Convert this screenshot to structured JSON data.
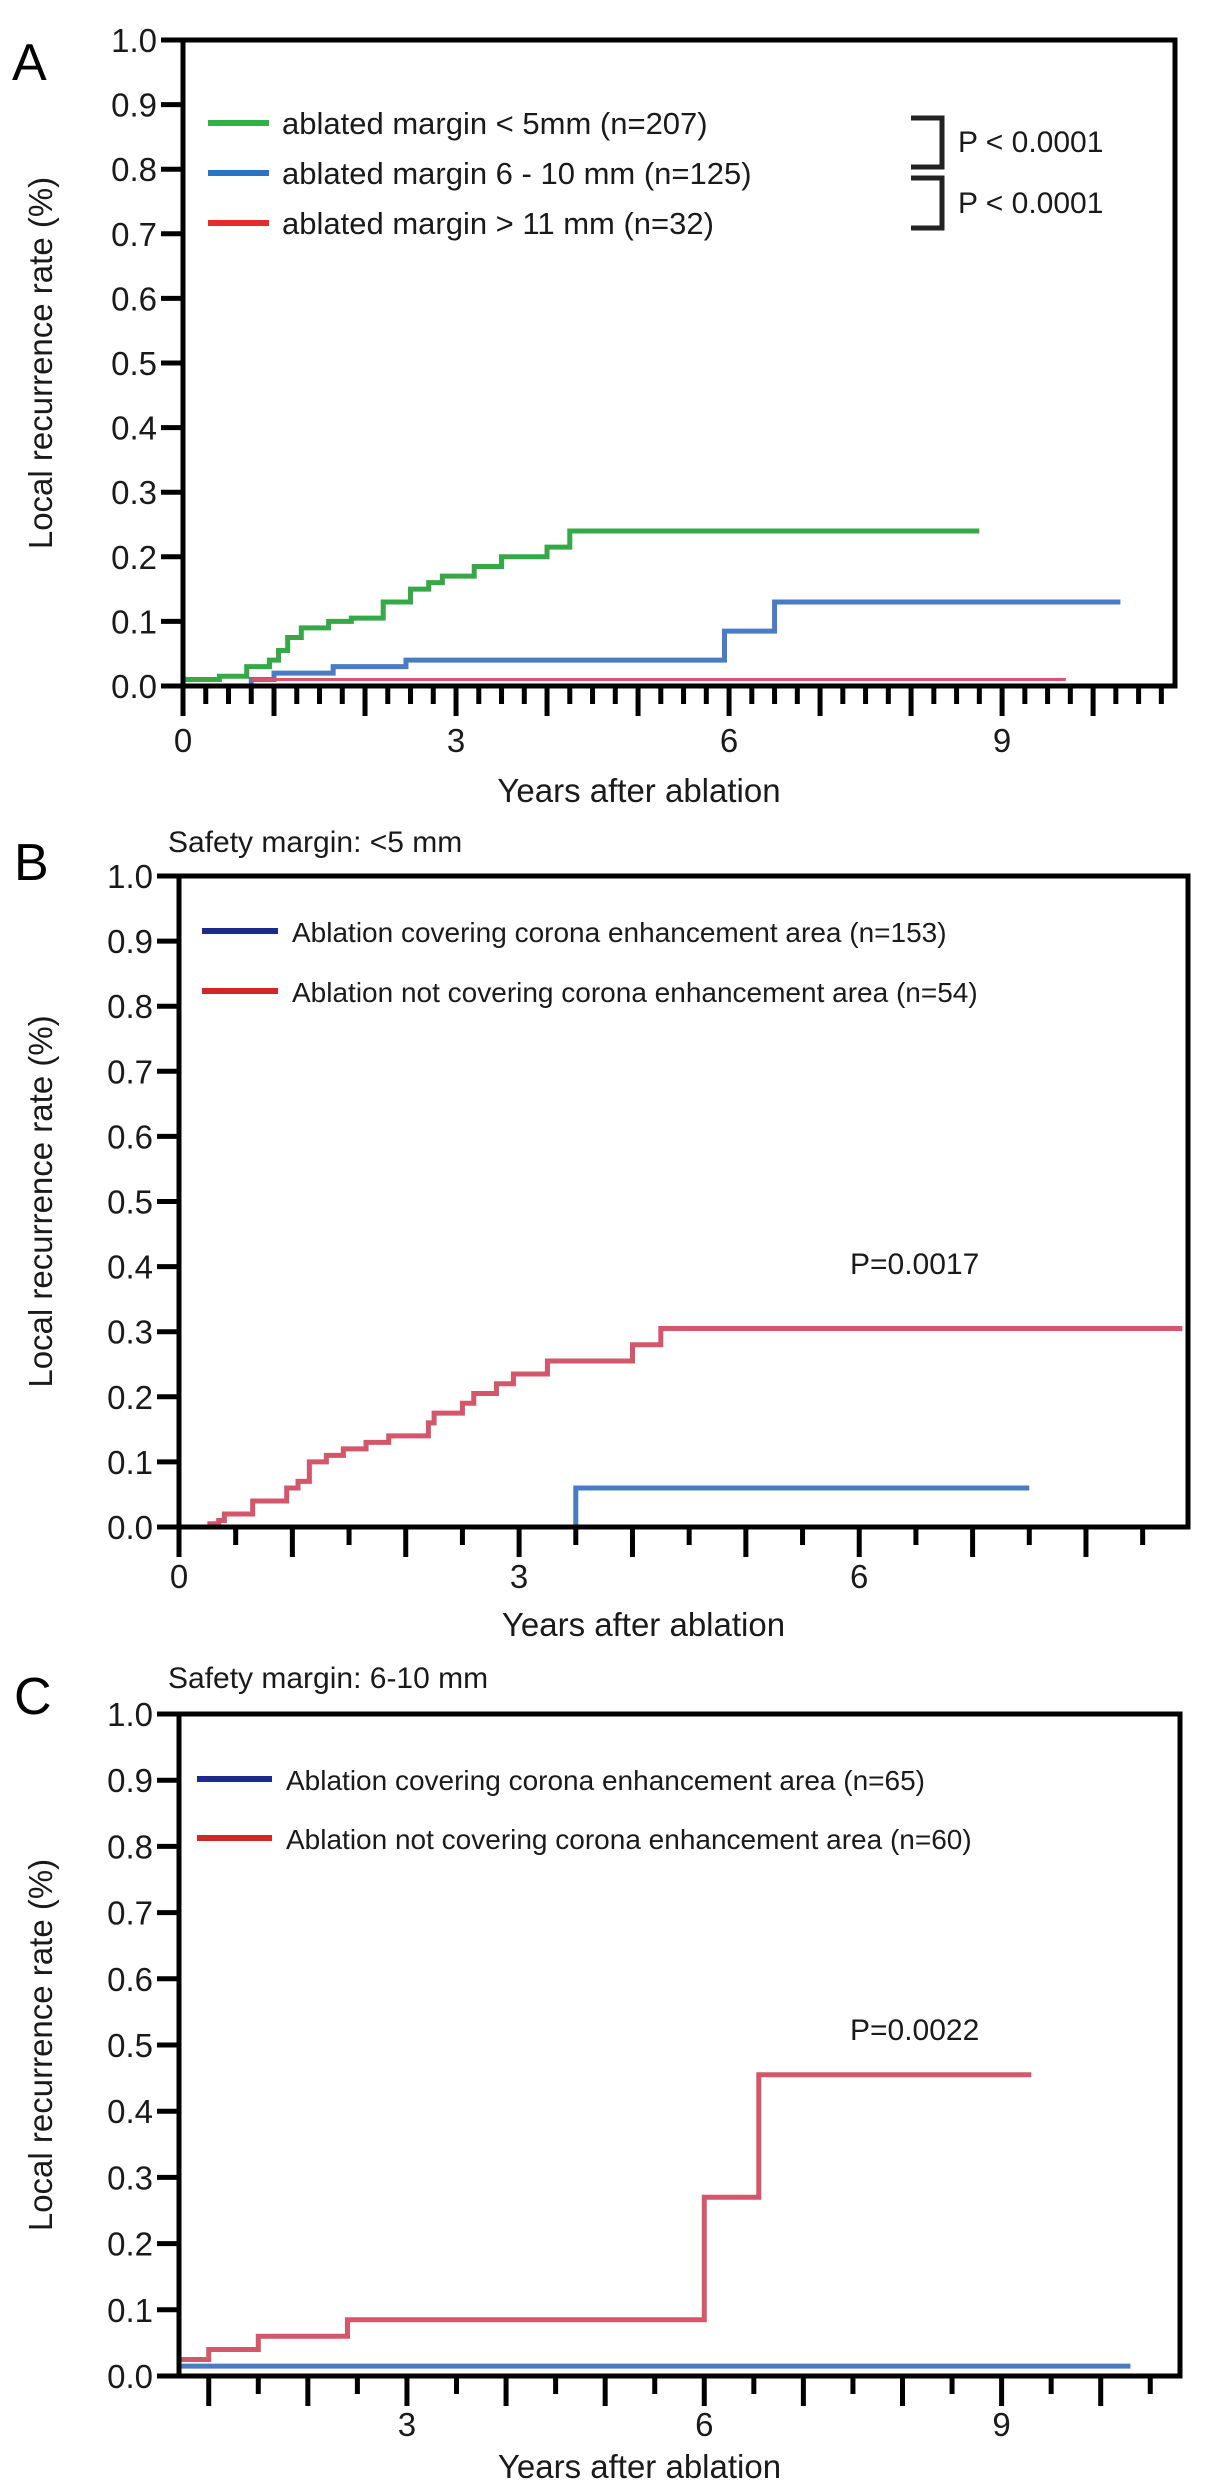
{
  "chart_data": [
    {
      "type": "line",
      "panel_label": "A",
      "title": "",
      "xlabel": "Years after ablation",
      "ylabel": "Local recurrence rate (%)",
      "xlim": [
        0,
        10.9
      ],
      "ylim": [
        0,
        1.0
      ],
      "xticks": [
        "0",
        "3",
        "6",
        "9"
      ],
      "xtick_values": [
        0,
        3,
        6,
        9
      ],
      "yticks": [
        "0.0",
        "0.1",
        "0.2",
        "0.3",
        "0.4",
        "0.5",
        "0.6",
        "0.7",
        "0.8",
        "0.9",
        "1.0"
      ],
      "grid": false,
      "legend_position": "top-left",
      "series": [
        {
          "name": "ablated margin < 5mm (n=207)",
          "color": "#36a847",
          "legend_color": "#2db34a",
          "end": 8.75,
          "steps": [
            [
              0,
              0.01
            ],
            [
              0.4,
              0.015
            ],
            [
              0.7,
              0.03
            ],
            [
              0.95,
              0.04
            ],
            [
              1.05,
              0.055
            ],
            [
              1.15,
              0.075
            ],
            [
              1.3,
              0.09
            ],
            [
              1.6,
              0.1
            ],
            [
              1.85,
              0.105
            ],
            [
              2.2,
              0.13
            ],
            [
              2.5,
              0.15
            ],
            [
              2.7,
              0.16
            ],
            [
              2.85,
              0.17
            ],
            [
              3.2,
              0.185
            ],
            [
              3.5,
              0.2
            ],
            [
              4.0,
              0.215
            ],
            [
              4.25,
              0.24
            ]
          ]
        },
        {
          "name": "ablated margin 6 - 10 mm (n=125)",
          "color": "#4a7cc4",
          "legend_color": "#2a73c0",
          "end": 10.3,
          "steps": [
            [
              0,
              0.0
            ],
            [
              0.75,
              0.01
            ],
            [
              1.0,
              0.02
            ],
            [
              1.65,
              0.03
            ],
            [
              2.45,
              0.04
            ],
            [
              5.95,
              0.085
            ],
            [
              6.5,
              0.13
            ]
          ]
        },
        {
          "name": "ablated margin > 11 mm (n=32)",
          "color": "#d9546a",
          "legend_color": "#e52b2b",
          "end": 9.7,
          "steps": [
            [
              0.75,
              0.01
            ]
          ]
        }
      ],
      "annotations": [
        "P < 0.0001",
        "P < 0.0001"
      ]
    },
    {
      "type": "line",
      "panel_label": "B",
      "title": "Safety margin: <5 mm",
      "xlabel": "Years after ablation",
      "ylabel": "Local recurrence rate (%)",
      "xlim": [
        0,
        8.9
      ],
      "ylim": [
        0,
        1.0
      ],
      "xticks": [
        "0",
        "3",
        "6"
      ],
      "xtick_values": [
        0,
        3,
        6
      ],
      "yticks": [
        "0.0",
        "0.1",
        "0.2",
        "0.3",
        "0.4",
        "0.5",
        "0.6",
        "0.7",
        "0.8",
        "0.9",
        "1.0"
      ],
      "grid": false,
      "legend_position": "top-left",
      "series": [
        {
          "name": "Ablation covering corona enhancement area (n=153)",
          "color": "#4a7cc4",
          "legend_color": "#1d2a8c",
          "end": 7.5,
          "steps": [
            [
              0,
              0.0
            ],
            [
              3.5,
              0.06
            ]
          ]
        },
        {
          "name": "Ablation not covering corona enhancement area (n=54)",
          "color": "#d4566a",
          "legend_color": "#d02828",
          "end": 8.85,
          "steps": [
            [
              0.25,
              0.005
            ],
            [
              0.35,
              0.01
            ],
            [
              0.4,
              0.02
            ],
            [
              0.65,
              0.04
            ],
            [
              0.95,
              0.06
            ],
            [
              1.05,
              0.07
            ],
            [
              1.15,
              0.1
            ],
            [
              1.3,
              0.11
            ],
            [
              1.45,
              0.12
            ],
            [
              1.65,
              0.13
            ],
            [
              1.85,
              0.14
            ],
            [
              2.2,
              0.16
            ],
            [
              2.25,
              0.175
            ],
            [
              2.5,
              0.19
            ],
            [
              2.6,
              0.205
            ],
            [
              2.8,
              0.22
            ],
            [
              2.95,
              0.235
            ],
            [
              3.25,
              0.255
            ],
            [
              4.0,
              0.28
            ],
            [
              4.25,
              0.305
            ]
          ]
        }
      ],
      "annotations": [
        "P=0.0017"
      ]
    },
    {
      "type": "line",
      "panel_label": "C",
      "title": "Safety margin: 6-10 mm",
      "xlabel": "Years after ablation",
      "ylabel": "Local recurrence rate (%)",
      "xlim": [
        0.7,
        10.8
      ],
      "ylim": [
        0,
        1.0
      ],
      "xticks": [
        "3",
        "6",
        "9"
      ],
      "xtick_values": [
        3,
        6,
        9
      ],
      "yticks": [
        "0.0",
        "0.1",
        "0.2",
        "0.3",
        "0.4",
        "0.5",
        "0.6",
        "0.7",
        "0.8",
        "0.9",
        "1.0"
      ],
      "grid": false,
      "legend_position": "top-left",
      "series": [
        {
          "name": "Ablation covering corona enhancement area (n=65)",
          "color": "#4a7cc4",
          "legend_color": "#1d2a8c",
          "end": 10.3,
          "steps": [
            [
              0.7,
              0.015
            ]
          ]
        },
        {
          "name": "Ablation not covering corona enhancement area (n=60)",
          "color": "#d4566a",
          "legend_color": "#d02828",
          "end": 9.3,
          "steps": [
            [
              0.7,
              0.025
            ],
            [
              1.0,
              0.04
            ],
            [
              1.5,
              0.06
            ],
            [
              2.4,
              0.085
            ],
            [
              6.0,
              0.27
            ],
            [
              6.55,
              0.455
            ]
          ]
        }
      ],
      "annotations": [
        "P=0.0022"
      ]
    }
  ]
}
